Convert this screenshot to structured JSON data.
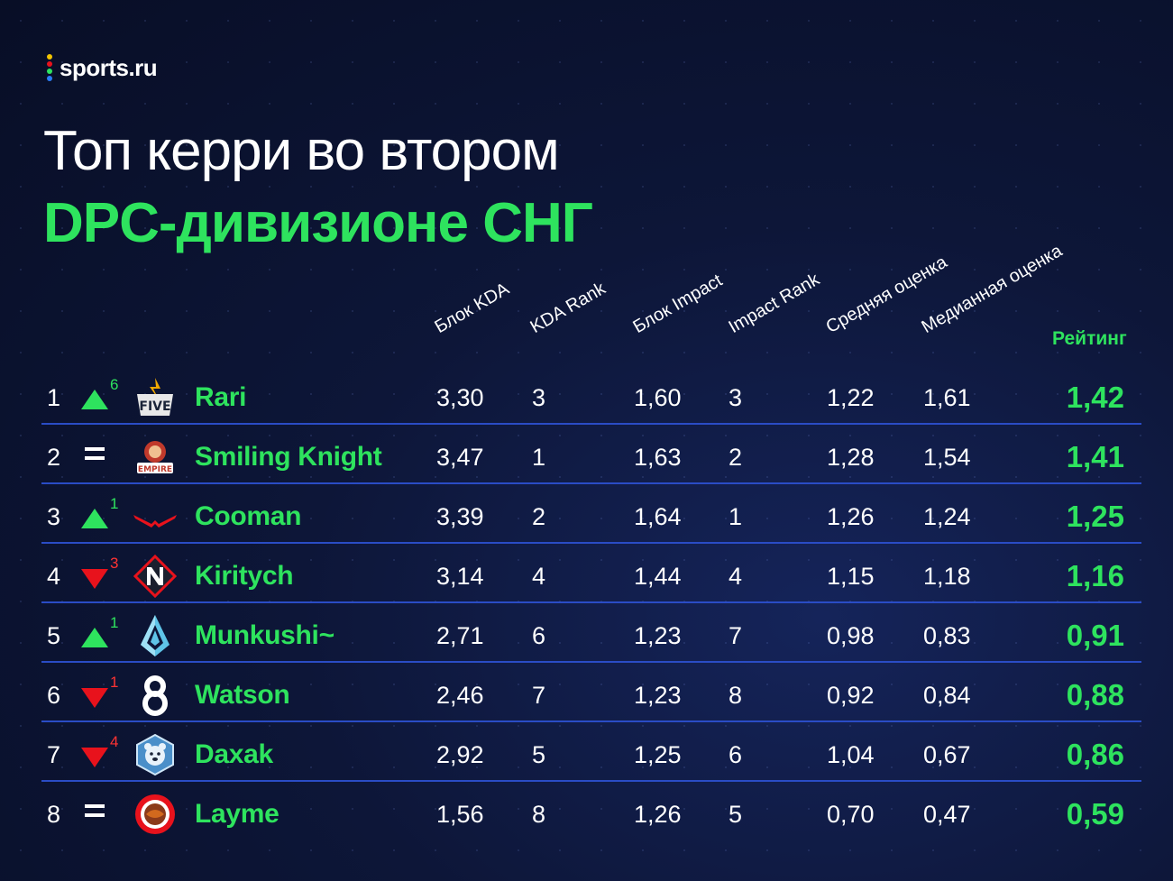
{
  "brand": {
    "name": "sports.ru",
    "dot_colors": [
      "#f2c400",
      "#e8121c",
      "#2ee35e",
      "#2a7cf6"
    ]
  },
  "title": {
    "line1": "Топ керри во втором",
    "line2": "DPC-дивизионе СНГ"
  },
  "columns": {
    "kda_block": "Блок KDA",
    "kda_rank": "KDA Rank",
    "impact_block": "Блок Impact",
    "impact_rank": "Impact Rank",
    "avg_score": "Средняя оценка",
    "median_score": "Медианная оценка",
    "rating": "Рейтинг"
  },
  "colors": {
    "accent_green": "#2ee35e",
    "down_red": "#e8121c",
    "divider_blue": "#2a4cc5"
  },
  "rows": [
    {
      "rank": "1",
      "trend": "up",
      "delta": "6",
      "team_icon": "five-logo-icon",
      "player": "Rari",
      "kda": "3,30",
      "kda_rank": "3",
      "impact": "1,60",
      "impact_rank": "3",
      "avg": "1,22",
      "median": "1,61",
      "rating": "1,42"
    },
    {
      "rank": "2",
      "trend": "same",
      "delta": "",
      "team_icon": "empire-logo-icon",
      "player": "Smiling Knight",
      "kda": "3,47",
      "kda_rank": "1",
      "impact": "1,63",
      "impact_rank": "2",
      "avg": "1,28",
      "median": "1,54",
      "rating": "1,41"
    },
    {
      "rank": "3",
      "trend": "up",
      "delta": "1",
      "team_icon": "virtus-pro-logo-icon",
      "player": "Cooman",
      "kda": "3,39",
      "kda_rank": "2",
      "impact": "1,64",
      "impact_rank": "1",
      "avg": "1,26",
      "median": "1,24",
      "rating": "1,25"
    },
    {
      "rank": "4",
      "trend": "down",
      "delta": "3",
      "team_icon": "nemiga-logo-icon",
      "player": "Kiritych",
      "kda": "3,14",
      "kda_rank": "4",
      "impact": "1,44",
      "impact_rank": "4",
      "avg": "1,15",
      "median": "1,18",
      "rating": "1,16"
    },
    {
      "rank": "5",
      "trend": "up",
      "delta": "1",
      "team_icon": "crystal-logo-icon",
      "player": "Munkushi~",
      "kda": "2,71",
      "kda_rank": "6",
      "impact": "1,23",
      "impact_rank": "7",
      "avg": "0,98",
      "median": "0,83",
      "rating": "0,91"
    },
    {
      "rank": "6",
      "trend": "down",
      "delta": "1",
      "team_icon": "b8-logo-icon",
      "player": "Watson",
      "kda": "2,46",
      "kda_rank": "7",
      "impact": "1,23",
      "impact_rank": "8",
      "avg": "0,92",
      "median": "0,84",
      "rating": "0,88"
    },
    {
      "rank": "7",
      "trend": "down",
      "delta": "4",
      "team_icon": "bear-logo-icon",
      "player": "Daxak",
      "kda": "2,92",
      "kda_rank": "5",
      "impact": "1,25",
      "impact_rank": "6",
      "avg": "1,04",
      "median": "0,67",
      "rating": "0,86"
    },
    {
      "rank": "8",
      "trend": "same",
      "delta": "",
      "team_icon": "hotchoco-logo-icon",
      "player": "Layme",
      "kda": "1,56",
      "kda_rank": "8",
      "impact": "1,26",
      "impact_rank": "5",
      "avg": "0,70",
      "median": "0,47",
      "rating": "0,59"
    }
  ]
}
